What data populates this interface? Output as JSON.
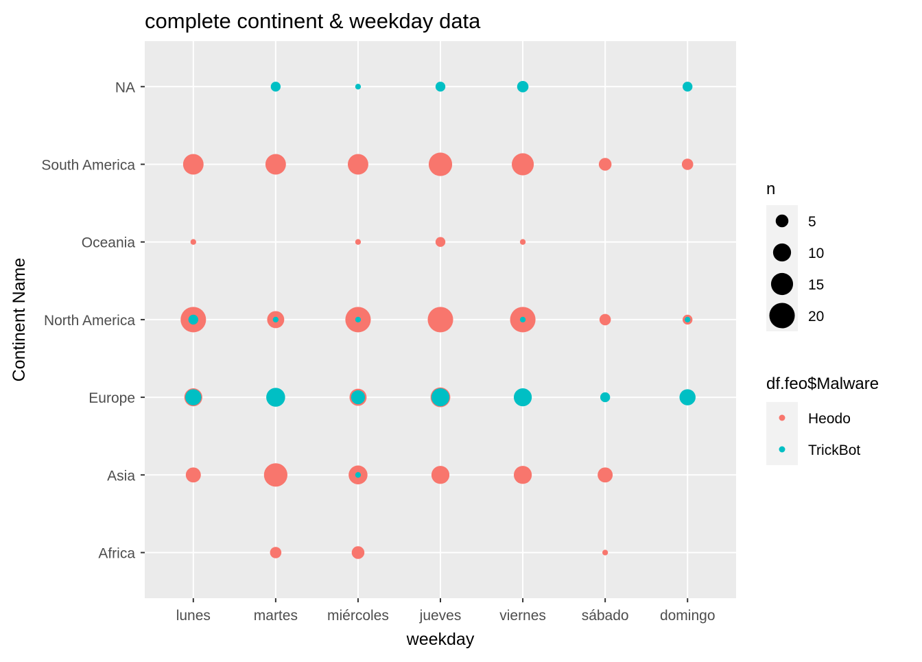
{
  "chart_data": {
    "type": "scatter",
    "title": "complete continent & weekday data",
    "xlabel": "weekday",
    "ylabel": "Continent Name",
    "x_categories": [
      "lunes",
      "martes",
      "miércoles",
      "jueves",
      "viernes",
      "sábado",
      "domingo"
    ],
    "y_categories": [
      "Africa",
      "Asia",
      "Europe",
      "North America",
      "Oceania",
      "South America",
      "NA"
    ],
    "grid": true,
    "colors": {
      "Heodo": "#F8766D",
      "TrickBot": "#00BFC4",
      "panel": "#EBEBEB",
      "gridline": "#FFFFFF"
    },
    "size_legend": {
      "title": "n",
      "breaks": [
        5,
        10,
        15,
        20
      ]
    },
    "color_legend": {
      "title": "df.feo$Malware",
      "entries": [
        "Heodo",
        "TrickBot"
      ]
    },
    "legend_position": "right",
    "series": [
      {
        "name": "Heodo",
        "points": [
          {
            "x": "martes",
            "y": "Africa",
            "n": 4
          },
          {
            "x": "miércoles",
            "y": "Africa",
            "n": 5
          },
          {
            "x": "sábado",
            "y": "Africa",
            "n": 1
          },
          {
            "x": "lunes",
            "y": "Asia",
            "n": 7
          },
          {
            "x": "martes",
            "y": "Asia",
            "n": 17
          },
          {
            "x": "miércoles",
            "y": "Asia",
            "n": 11
          },
          {
            "x": "jueves",
            "y": "Asia",
            "n": 10
          },
          {
            "x": "viernes",
            "y": "Asia",
            "n": 10
          },
          {
            "x": "sábado",
            "y": "Asia",
            "n": 7
          },
          {
            "x": "lunes",
            "y": "Europe",
            "n": 10
          },
          {
            "x": "martes",
            "y": "Europe",
            "n": 10
          },
          {
            "x": "miércoles",
            "y": "Europe",
            "n": 9
          },
          {
            "x": "jueves",
            "y": "Europe",
            "n": 12
          },
          {
            "x": "lunes",
            "y": "North America",
            "n": 20
          },
          {
            "x": "martes",
            "y": "North America",
            "n": 9
          },
          {
            "x": "miércoles",
            "y": "North America",
            "n": 20
          },
          {
            "x": "jueves",
            "y": "North America",
            "n": 20
          },
          {
            "x": "viernes",
            "y": "North America",
            "n": 20
          },
          {
            "x": "sábado",
            "y": "North America",
            "n": 4
          },
          {
            "x": "domingo",
            "y": "North America",
            "n": 3
          },
          {
            "x": "lunes",
            "y": "Oceania",
            "n": 1
          },
          {
            "x": "miércoles",
            "y": "Oceania",
            "n": 1
          },
          {
            "x": "jueves",
            "y": "Oceania",
            "n": 3
          },
          {
            "x": "viernes",
            "y": "Oceania",
            "n": 1
          },
          {
            "x": "lunes",
            "y": "South America",
            "n": 13
          },
          {
            "x": "martes",
            "y": "South America",
            "n": 13
          },
          {
            "x": "miércoles",
            "y": "South America",
            "n": 13
          },
          {
            "x": "jueves",
            "y": "South America",
            "n": 17
          },
          {
            "x": "viernes",
            "y": "South America",
            "n": 15
          },
          {
            "x": "sábado",
            "y": "South America",
            "n": 5
          },
          {
            "x": "domingo",
            "y": "South America",
            "n": 4
          }
        ]
      },
      {
        "name": "TrickBot",
        "points": [
          {
            "x": "miércoles",
            "y": "Asia",
            "n": 1
          },
          {
            "x": "lunes",
            "y": "Europe",
            "n": 8
          },
          {
            "x": "martes",
            "y": "Europe",
            "n": 11
          },
          {
            "x": "miércoles",
            "y": "Europe",
            "n": 6
          },
          {
            "x": "jueves",
            "y": "Europe",
            "n": 10
          },
          {
            "x": "viernes",
            "y": "Europe",
            "n": 10
          },
          {
            "x": "sábado",
            "y": "Europe",
            "n": 3
          },
          {
            "x": "domingo",
            "y": "Europe",
            "n": 8
          },
          {
            "x": "lunes",
            "y": "North America",
            "n": 3
          },
          {
            "x": "martes",
            "y": "North America",
            "n": 1
          },
          {
            "x": "miércoles",
            "y": "North America",
            "n": 1
          },
          {
            "x": "viernes",
            "y": "North America",
            "n": 1
          },
          {
            "x": "domingo",
            "y": "North America",
            "n": 1
          },
          {
            "x": "martes",
            "y": "NA",
            "n": 3
          },
          {
            "x": "miércoles",
            "y": "NA",
            "n": 1
          },
          {
            "x": "jueves",
            "y": "NA",
            "n": 3
          },
          {
            "x": "viernes",
            "y": "NA",
            "n": 4
          },
          {
            "x": "domingo",
            "y": "NA",
            "n": 3
          }
        ]
      }
    ]
  }
}
